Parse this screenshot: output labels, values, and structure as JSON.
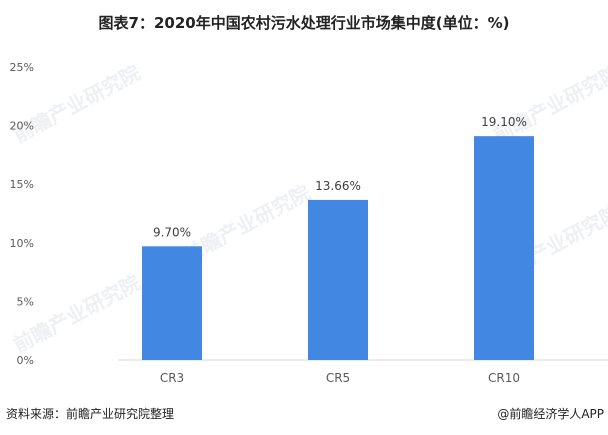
{
  "chart_data": {
    "type": "bar",
    "title": "图表7：2020年中国农村污水处理行业市场集中度(单位：%)",
    "categories": [
      "CR3",
      "CR5",
      "CR10"
    ],
    "values": [
      9.7,
      13.66,
      19.1
    ],
    "data_labels": [
      "9.70%",
      "13.66%",
      "19.10%"
    ],
    "yticks": [
      "0%",
      "5%",
      "10%",
      "15%",
      "20%",
      "25%"
    ],
    "ylim": [
      0,
      25
    ],
    "grid": false,
    "bar_color": "#4287E1",
    "xlabel": "",
    "ylabel": ""
  },
  "footer": {
    "source": "资料来源：前瞻产业研究院整理",
    "credit": "@前瞻经济学人APP"
  },
  "watermark": "前瞻产业研究院"
}
